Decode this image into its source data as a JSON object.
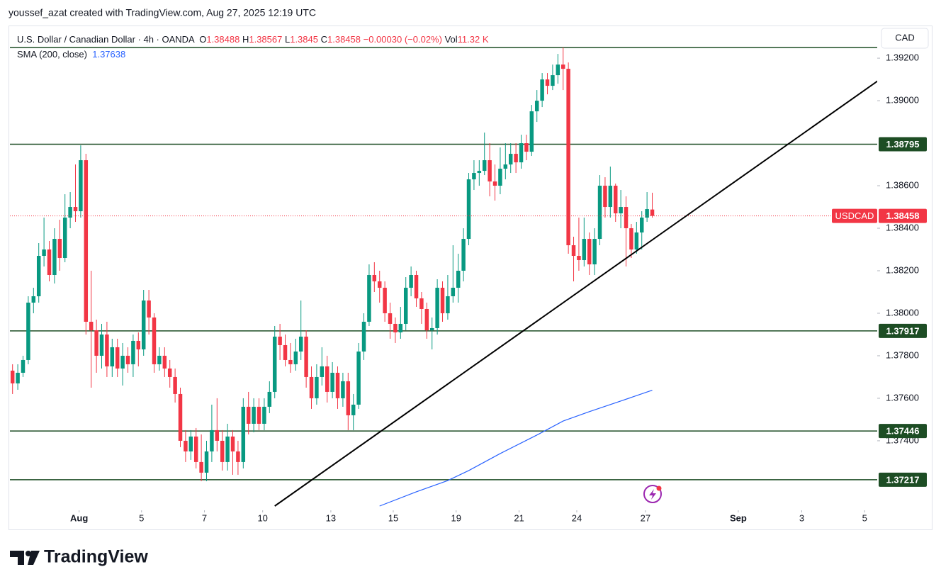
{
  "watermark": "youssef_azat created with TradingView.com, Aug 27, 2025 12:19 UTC",
  "brand": "TradingView",
  "chart_data": {
    "type": "candlestick",
    "symbol": "U.S. Dollar / Canadian Dollar · 4h · OANDA",
    "legend_labels": {
      "open": "O",
      "high": "H",
      "low": "L",
      "close": "C",
      "volume": "Vol"
    },
    "change": "−0.00030 (−0.02%)",
    "volume": "11.32 K",
    "currency": "CAD",
    "ticker": "USDCAD",
    "up_color": "#089981",
    "down_color": "#f23645",
    "level_color": "#1d4d24",
    "price_line_color": "#f23645",
    "candles": [
      [
        1.3773,
        1.3776,
        1.3762,
        1.3767
      ],
      [
        1.3767,
        1.3776,
        1.3764,
        1.3772
      ],
      [
        1.3772,
        1.378,
        1.377,
        1.3778
      ],
      [
        1.3778,
        1.3808,
        1.3776,
        1.3805
      ],
      [
        1.3805,
        1.3812,
        1.38,
        1.3808
      ],
      [
        1.3808,
        1.3833,
        1.3805,
        1.3827
      ],
      [
        1.3827,
        1.3845,
        1.3822,
        1.383
      ],
      [
        1.383,
        1.3834,
        1.3815,
        1.3818
      ],
      [
        1.3818,
        1.384,
        1.3814,
        1.3835
      ],
      [
        1.3835,
        1.3844,
        1.382,
        1.3826
      ],
      [
        1.3826,
        1.3856,
        1.3824,
        1.3845
      ],
      [
        1.3845,
        1.3857,
        1.384,
        1.385
      ],
      [
        1.385,
        1.387,
        1.3843,
        1.3848
      ],
      [
        1.3848,
        1.3879,
        1.3845,
        1.3872
      ],
      [
        1.3872,
        1.3875,
        1.379,
        1.3796
      ],
      [
        1.3796,
        1.382,
        1.3765,
        1.3792
      ],
      [
        1.3792,
        1.3797,
        1.3772,
        1.378
      ],
      [
        1.378,
        1.3795,
        1.3774,
        1.379
      ],
      [
        1.379,
        1.3796,
        1.377,
        1.3775
      ],
      [
        1.3775,
        1.3788,
        1.377,
        1.3784
      ],
      [
        1.3784,
        1.3788,
        1.377,
        1.3774
      ],
      [
        1.3774,
        1.3786,
        1.3766,
        1.378
      ],
      [
        1.378,
        1.3784,
        1.3772,
        1.3776
      ],
      [
        1.3776,
        1.379,
        1.377,
        1.3787
      ],
      [
        1.3787,
        1.3791,
        1.3775,
        1.3783
      ],
      [
        1.3783,
        1.3811,
        1.378,
        1.3806
      ],
      [
        1.3806,
        1.3811,
        1.379,
        1.3798
      ],
      [
        1.3798,
        1.38,
        1.3772,
        1.3776
      ],
      [
        1.3776,
        1.3784,
        1.3773,
        1.378
      ],
      [
        1.378,
        1.3784,
        1.377,
        1.3774
      ],
      [
        1.3774,
        1.3778,
        1.3765,
        1.377
      ],
      [
        1.377,
        1.3774,
        1.3758,
        1.3762
      ],
      [
        1.3762,
        1.3765,
        1.3737,
        1.374
      ],
      [
        1.374,
        1.3745,
        1.373,
        1.3735
      ],
      [
        1.3735,
        1.3745,
        1.3731,
        1.3742
      ],
      [
        1.3742,
        1.3746,
        1.3727,
        1.373
      ],
      [
        1.373,
        1.3743,
        1.3721,
        1.3725
      ],
      [
        1.3725,
        1.374,
        1.3721,
        1.3735
      ],
      [
        1.3735,
        1.3757,
        1.373,
        1.3745
      ],
      [
        1.3745,
        1.376,
        1.3735,
        1.374
      ],
      [
        1.374,
        1.3745,
        1.3726,
        1.373
      ],
      [
        1.373,
        1.3748,
        1.3726,
        1.3742
      ],
      [
        1.3742,
        1.3745,
        1.3724,
        1.3735
      ],
      [
        1.3735,
        1.374,
        1.3724,
        1.373
      ],
      [
        1.373,
        1.376,
        1.3727,
        1.3756
      ],
      [
        1.3756,
        1.3763,
        1.3743,
        1.3748
      ],
      [
        1.3748,
        1.376,
        1.3744,
        1.3756
      ],
      [
        1.3756,
        1.376,
        1.3745,
        1.3748
      ],
      [
        1.3748,
        1.376,
        1.3745,
        1.3756
      ],
      [
        1.3756,
        1.3768,
        1.3753,
        1.3763
      ],
      [
        1.3763,
        1.3794,
        1.376,
        1.3789
      ],
      [
        1.3789,
        1.3795,
        1.3778,
        1.3785
      ],
      [
        1.3785,
        1.379,
        1.3775,
        1.3778
      ],
      [
        1.3778,
        1.3786,
        1.3772,
        1.3776
      ],
      [
        1.3776,
        1.3788,
        1.3773,
        1.3782
      ],
      [
        1.3782,
        1.3806,
        1.3778,
        1.3789
      ],
      [
        1.3789,
        1.3792,
        1.3765,
        1.377
      ],
      [
        1.377,
        1.3775,
        1.3755,
        1.376
      ],
      [
        1.376,
        1.3776,
        1.3757,
        1.377
      ],
      [
        1.377,
        1.3784,
        1.3766,
        1.3775
      ],
      [
        1.3775,
        1.378,
        1.3758,
        1.3763
      ],
      [
        1.3763,
        1.3777,
        1.376,
        1.3772
      ],
      [
        1.3772,
        1.3775,
        1.3755,
        1.376
      ],
      [
        1.376,
        1.3772,
        1.3756,
        1.3768
      ],
      [
        1.3768,
        1.3772,
        1.3745,
        1.3752
      ],
      [
        1.3752,
        1.3762,
        1.3745,
        1.3757
      ],
      [
        1.3757,
        1.3786,
        1.3755,
        1.3782
      ],
      [
        1.3782,
        1.38,
        1.3778,
        1.3796
      ],
      [
        1.3796,
        1.3823,
        1.3794,
        1.3818
      ],
      [
        1.3818,
        1.3824,
        1.381,
        1.3815
      ],
      [
        1.3815,
        1.382,
        1.3805,
        1.3812
      ],
      [
        1.3812,
        1.3815,
        1.3796,
        1.38
      ],
      [
        1.38,
        1.3805,
        1.3788,
        1.3795
      ],
      [
        1.3795,
        1.3798,
        1.3786,
        1.3791
      ],
      [
        1.3791,
        1.3803,
        1.3788,
        1.3795
      ],
      [
        1.3795,
        1.3817,
        1.3792,
        1.3812
      ],
      [
        1.3812,
        1.3822,
        1.3808,
        1.3818
      ],
      [
        1.3818,
        1.382,
        1.3803,
        1.3807
      ],
      [
        1.3807,
        1.381,
        1.3795,
        1.3802
      ],
      [
        1.3802,
        1.3805,
        1.3788,
        1.3792
      ],
      [
        1.3792,
        1.3798,
        1.3783,
        1.3793
      ],
      [
        1.3793,
        1.3816,
        1.379,
        1.3812
      ],
      [
        1.3812,
        1.3815,
        1.3796,
        1.38
      ],
      [
        1.38,
        1.3818,
        1.3797,
        1.3808
      ],
      [
        1.3808,
        1.3832,
        1.3805,
        1.3812
      ],
      [
        1.3812,
        1.3828,
        1.3805,
        1.382
      ],
      [
        1.382,
        1.384,
        1.3815,
        1.3835
      ],
      [
        1.3835,
        1.3866,
        1.3832,
        1.3863
      ],
      [
        1.3863,
        1.3872,
        1.3858,
        1.3866
      ],
      [
        1.3866,
        1.3872,
        1.386,
        1.3867
      ],
      [
        1.3867,
        1.3885,
        1.3865,
        1.3872
      ],
      [
        1.3872,
        1.388,
        1.3855,
        1.3862
      ],
      [
        1.3862,
        1.387,
        1.3853,
        1.386
      ],
      [
        1.386,
        1.3878,
        1.3856,
        1.3868
      ],
      [
        1.3868,
        1.388,
        1.3863,
        1.387
      ],
      [
        1.387,
        1.388,
        1.3866,
        1.3875
      ],
      [
        1.3875,
        1.388,
        1.3866,
        1.3871
      ],
      [
        1.3871,
        1.3884,
        1.3868,
        1.388
      ],
      [
        1.388,
        1.3884,
        1.3872,
        1.3876
      ],
      [
        1.3876,
        1.3898,
        1.3874,
        1.3895
      ],
      [
        1.3895,
        1.3905,
        1.389,
        1.39
      ],
      [
        1.39,
        1.3913,
        1.3897,
        1.391
      ],
      [
        1.391,
        1.3913,
        1.3903,
        1.3907
      ],
      [
        1.3907,
        1.3917,
        1.3905,
        1.3912
      ],
      [
        1.3912,
        1.3922,
        1.3908,
        1.3917
      ],
      [
        1.3917,
        1.3925,
        1.3905,
        1.3915
      ],
      [
        1.3915,
        1.3918,
        1.3828,
        1.3832
      ],
      [
        1.3832,
        1.3836,
        1.3815,
        1.3827
      ],
      [
        1.3827,
        1.3845,
        1.382,
        1.3825
      ],
      [
        1.3825,
        1.3845,
        1.3822,
        1.3835
      ],
      [
        1.3835,
        1.3838,
        1.3818,
        1.3823
      ],
      [
        1.3823,
        1.384,
        1.3818,
        1.3835
      ],
      [
        1.3835,
        1.3865,
        1.3832,
        1.386
      ],
      [
        1.386,
        1.3864,
        1.3845,
        1.385
      ],
      [
        1.385,
        1.3869,
        1.3845,
        1.386
      ],
      [
        1.386,
        1.3861,
        1.3843,
        1.3847
      ],
      [
        1.3847,
        1.3858,
        1.384,
        1.385
      ],
      [
        1.385,
        1.3855,
        1.3822,
        1.384
      ],
      [
        1.384,
        1.3842,
        1.3826,
        1.383
      ],
      [
        1.383,
        1.3843,
        1.3828,
        1.3838
      ],
      [
        1.3838,
        1.3848,
        1.383,
        1.3845
      ],
      [
        1.3845,
        1.3857,
        1.3843,
        1.3849
      ],
      [
        1.38488,
        1.38567,
        1.3845,
        1.38458
      ]
    ],
    "sma": {
      "name": "SMA (200, close)",
      "color": "#2962ff",
      "x": [
        70,
        77,
        83,
        87,
        93,
        100,
        105,
        110,
        116,
        122
      ],
      "values": [
        1.37093,
        1.3716,
        1.37213,
        1.3726,
        1.3734,
        1.37427,
        1.37493,
        1.37537,
        1.37587,
        1.37638
      ]
    },
    "levels": [
      1.38795,
      1.37917,
      1.37446,
      1.37217
    ],
    "top_level": 1.3925,
    "trendline": {
      "x": [
        50,
        165.4
      ],
      "values": [
        1.37093,
        1.391
      ]
    },
    "xlim": [
      -0.5,
      164.9
    ],
    "ylim": [
      1.37073,
      1.39347
    ],
    "yticks": [
      {
        "value": 1.374,
        "label": "1.37400"
      },
      {
        "value": 1.376,
        "label": "1.37600"
      },
      {
        "value": 1.378,
        "label": "1.37800"
      },
      {
        "value": 1.38,
        "label": "1.38000"
      },
      {
        "value": 1.382,
        "label": "1.38200"
      },
      {
        "value": 1.384,
        "label": "1.38400"
      },
      {
        "value": 1.386,
        "label": "1.38600"
      },
      {
        "value": 1.39,
        "label": "1.39000"
      },
      {
        "value": 1.392,
        "label": "1.39200"
      }
    ],
    "xticks": [
      {
        "value": 12.7,
        "label": "Aug"
      },
      {
        "value": 24.6,
        "label": "5"
      },
      {
        "value": 36.6,
        "label": "7"
      },
      {
        "value": 47.7,
        "label": "10"
      },
      {
        "value": 60.7,
        "label": "13"
      },
      {
        "value": 72.6,
        "label": "15"
      },
      {
        "value": 84.6,
        "label": "19"
      },
      {
        "value": 96.6,
        "label": "21"
      },
      {
        "value": 107.6,
        "label": "24"
      },
      {
        "value": 120.7,
        "label": "27"
      },
      {
        "value": 138.4,
        "label": "Sep"
      },
      {
        "value": 150.5,
        "label": "3"
      },
      {
        "value": 162.5,
        "label": "5"
      }
    ]
  }
}
